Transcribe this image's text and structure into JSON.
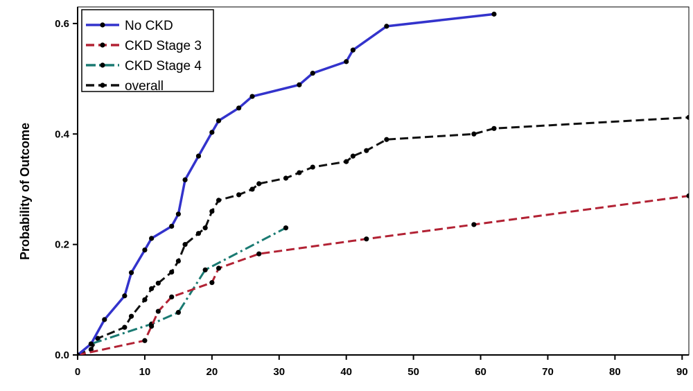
{
  "chart_data": {
    "type": "line",
    "title": "",
    "xlabel": "",
    "ylabel": "Probability of Outcome",
    "xlim": [
      0,
      91
    ],
    "ylim": [
      0,
      0.63
    ],
    "x_ticks": [
      0,
      10,
      20,
      30,
      40,
      50,
      60,
      70,
      80,
      90
    ],
    "y_ticks": [
      0.0,
      0.2,
      0.4,
      0.6
    ],
    "x_tick_labels": [
      "0",
      "10",
      "20",
      "30",
      "40",
      "50",
      "60",
      "70",
      "80",
      "90"
    ],
    "y_tick_labels": [
      "0.0",
      "0.2",
      "0.4",
      "0.6"
    ],
    "legend_position": "top-left",
    "grid": false,
    "series": [
      {
        "name": "No CKD",
        "color": "#3333cc",
        "line_style": "solid",
        "x": [
          0,
          2,
          4,
          7,
          8,
          10,
          11,
          14,
          15,
          16,
          18,
          20,
          21,
          24,
          26,
          33,
          35,
          40,
          41,
          46,
          62
        ],
        "y": [
          0.0,
          0.02,
          0.064,
          0.107,
          0.149,
          0.19,
          0.211,
          0.233,
          0.255,
          0.317,
          0.36,
          0.403,
          0.424,
          0.447,
          0.468,
          0.489,
          0.51,
          0.531,
          0.552,
          0.595,
          0.617
        ]
      },
      {
        "name": "CKD Stage 3",
        "color": "#b22234",
        "line_style": "dashed",
        "x": [
          0,
          10,
          11,
          12,
          14,
          20,
          21,
          27,
          43,
          59,
          91
        ],
        "y": [
          0.0,
          0.026,
          0.052,
          0.079,
          0.105,
          0.131,
          0.157,
          0.183,
          0.21,
          0.236,
          0.288
        ]
      },
      {
        "name": "CKD Stage 4",
        "color": "#1a7a72",
        "line_style": "dashdot",
        "x": [
          0,
          2,
          11,
          15,
          19,
          31
        ],
        "y": [
          0.0,
          0.02,
          0.056,
          0.077,
          0.154,
          0.23
        ]
      },
      {
        "name": "overall",
        "color": "#111111",
        "line_style": "dashed",
        "x": [
          0,
          2,
          3,
          7,
          8,
          10,
          11,
          12,
          14,
          15,
          16,
          18,
          19,
          20,
          21,
          24,
          26,
          27,
          31,
          33,
          35,
          40,
          41,
          43,
          46,
          59,
          62,
          91
        ],
        "y": [
          0.0,
          0.01,
          0.03,
          0.05,
          0.07,
          0.1,
          0.12,
          0.13,
          0.15,
          0.17,
          0.2,
          0.22,
          0.23,
          0.26,
          0.28,
          0.29,
          0.3,
          0.31,
          0.32,
          0.33,
          0.34,
          0.35,
          0.36,
          0.37,
          0.39,
          0.4,
          0.41,
          0.43
        ]
      }
    ]
  }
}
